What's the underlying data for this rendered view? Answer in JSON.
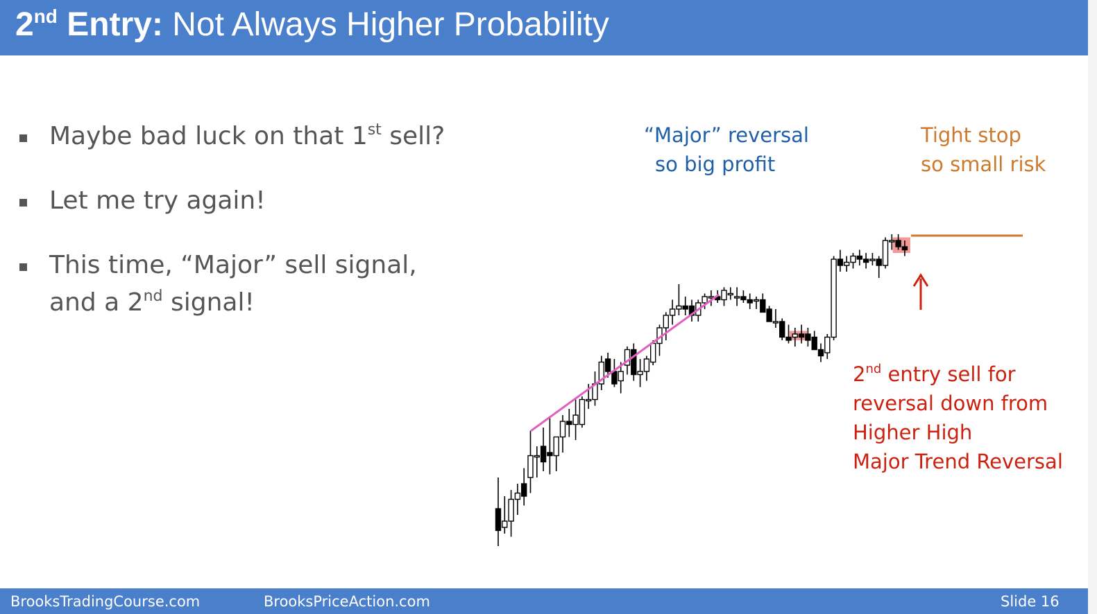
{
  "slide": {
    "title_bold_num": "2",
    "title_bold_sup": "nd",
    "title_bold_rest": " Entry:",
    "title_rest": " Not Always Higher Probability"
  },
  "bullets": {
    "b1_pre": "Maybe bad luck on that 1",
    "b1_sup": "st",
    "b1_post": " sell?",
    "b2": "Let me try again!",
    "b3_line1": "This time, “Major” sell signal,",
    "b3_pre": "and a 2",
    "b3_sup": "nd",
    "b3_post": " signal!"
  },
  "annotations": {
    "major_line1": "“Major” reversal",
    "major_line2": "so big profit",
    "stop_line1": "Tight stop",
    "stop_line2": "so small risk",
    "entry_num": "2",
    "entry_sup": "nd",
    "entry_line1_rest": " entry sell for",
    "entry_line2": "reversal down from",
    "entry_line3": "Higher High",
    "entry_line4": "Major Trend Reversal"
  },
  "footer": {
    "left": "BrooksTradingCourse.com",
    "center": "BrooksPriceAction.com",
    "right": "Slide  16"
  },
  "colors": {
    "header": "#4a7fcc",
    "trendline": "#e060c0",
    "stop_line": "#cc7a2e",
    "signal_highlight": "#f08080",
    "arrow": "#cc2010",
    "annotation_blue": "#1f5fa8",
    "annotation_orange": "#cc7a2e",
    "annotation_red": "#cc2010"
  },
  "chart_data": {
    "type": "candlestick",
    "price_direction": "up: higher values are higher on the chart",
    "bars": [
      {
        "o": 8,
        "h": 18,
        "l": -4,
        "c": 1
      },
      {
        "o": 2,
        "h": 12,
        "l": 0,
        "c": 4
      },
      {
        "o": 4,
        "h": 14,
        "l": -1,
        "c": 11
      },
      {
        "o": 11,
        "h": 16,
        "l": 6,
        "c": 13
      },
      {
        "o": 16,
        "h": 21,
        "l": 9,
        "c": 12
      },
      {
        "o": 18,
        "h": 33,
        "l": 13,
        "c": 25
      },
      {
        "o": 25,
        "h": 28,
        "l": 18,
        "c": 25
      },
      {
        "o": 28,
        "h": 34,
        "l": 20,
        "c": 23
      },
      {
        "o": 26,
        "h": 37,
        "l": 19,
        "c": 25
      },
      {
        "o": 25,
        "h": 30,
        "l": 20,
        "c": 31
      },
      {
        "o": 31,
        "h": 38,
        "l": 26,
        "c": 36
      },
      {
        "o": 36,
        "h": 40,
        "l": 31,
        "c": 35
      },
      {
        "o": 35,
        "h": 43,
        "l": 30,
        "c": 38
      },
      {
        "o": 35,
        "h": 44,
        "l": 34,
        "c": 43
      },
      {
        "o": 43,
        "h": 48,
        "l": 40,
        "c": 43
      },
      {
        "o": 43,
        "h": 52,
        "l": 41,
        "c": 48
      },
      {
        "o": 48,
        "h": 57,
        "l": 46,
        "c": 55
      },
      {
        "o": 56,
        "h": 58,
        "l": 50,
        "c": 52
      },
      {
        "o": 52,
        "h": 56,
        "l": 47,
        "c": 48
      },
      {
        "o": 49,
        "h": 55,
        "l": 45,
        "c": 52
      },
      {
        "o": 54,
        "h": 60,
        "l": 51,
        "c": 59
      },
      {
        "o": 59,
        "h": 61,
        "l": 49,
        "c": 51
      },
      {
        "o": 51,
        "h": 56,
        "l": 47,
        "c": 52
      },
      {
        "o": 52,
        "h": 57,
        "l": 49,
        "c": 56
      },
      {
        "o": 55,
        "h": 62,
        "l": 54,
        "c": 61
      },
      {
        "o": 61,
        "h": 67,
        "l": 57,
        "c": 66
      },
      {
        "o": 66,
        "h": 71,
        "l": 62,
        "c": 70
      },
      {
        "o": 70,
        "h": 75,
        "l": 67,
        "c": 72
      },
      {
        "o": 72,
        "h": 80,
        "l": 70,
        "c": 73
      },
      {
        "o": 73,
        "h": 76,
        "l": 70,
        "c": 72
      },
      {
        "o": 73,
        "h": 75,
        "l": 68,
        "c": 70
      },
      {
        "o": 70,
        "h": 75,
        "l": 68,
        "c": 74
      },
      {
        "o": 74,
        "h": 77,
        "l": 72,
        "c": 76
      },
      {
        "o": 76,
        "h": 78,
        "l": 73,
        "c": 76
      },
      {
        "o": 76,
        "h": 78,
        "l": 74,
        "c": 75
      },
      {
        "o": 75,
        "h": 79,
        "l": 73,
        "c": 78
      },
      {
        "o": 77,
        "h": 79,
        "l": 75,
        "c": 77
      },
      {
        "o": 76,
        "h": 79,
        "l": 73,
        "c": 76
      },
      {
        "o": 76,
        "h": 78,
        "l": 74,
        "c": 75
      },
      {
        "o": 75,
        "h": 77,
        "l": 72,
        "c": 74
      },
      {
        "o": 75,
        "h": 76,
        "l": 72,
        "c": 75
      },
      {
        "o": 75,
        "h": 77,
        "l": 71,
        "c": 71
      },
      {
        "o": 72,
        "h": 73,
        "l": 68,
        "c": 68
      },
      {
        "o": 68,
        "h": 72,
        "l": 66,
        "c": 68
      },
      {
        "o": 68,
        "h": 69,
        "l": 62,
        "c": 63
      },
      {
        "o": 63,
        "h": 67,
        "l": 61,
        "c": 62
      },
      {
        "o": 63,
        "h": 66,
        "l": 60,
        "c": 64
      },
      {
        "o": 64,
        "h": 67,
        "l": 61,
        "c": 63
      },
      {
        "o": 64,
        "h": 66,
        "l": 60,
        "c": 62
      },
      {
        "o": 63,
        "h": 65,
        "l": 59,
        "c": 59
      },
      {
        "o": 59,
        "h": 61,
        "l": 55,
        "c": 57
      },
      {
        "o": 58,
        "h": 64,
        "l": 56,
        "c": 63
      },
      {
        "o": 63,
        "h": 89,
        "l": 62,
        "c": 88
      },
      {
        "o": 88,
        "h": 91,
        "l": 84,
        "c": 86
      },
      {
        "o": 86,
        "h": 89,
        "l": 84,
        "c": 87
      },
      {
        "o": 87,
        "h": 90,
        "l": 85,
        "c": 89
      },
      {
        "o": 89,
        "h": 91,
        "l": 86,
        "c": 88
      },
      {
        "o": 88,
        "h": 90,
        "l": 85,
        "c": 87
      },
      {
        "o": 88,
        "h": 90,
        "l": 86,
        "c": 88
      },
      {
        "o": 88,
        "h": 89,
        "l": 82,
        "c": 86
      },
      {
        "o": 86,
        "h": 95,
        "l": 85,
        "c": 94
      },
      {
        "o": 94,
        "h": 96,
        "l": 91,
        "c": 94
      },
      {
        "o": 94,
        "h": 96,
        "l": 91,
        "c": 92
      },
      {
        "o": 92,
        "h": 94,
        "l": 89,
        "c": 91
      }
    ],
    "trendline_bars": [
      5,
      34
    ],
    "signal_bars": [
      46,
      47,
      62,
      63
    ],
    "stop_level": 96
  }
}
